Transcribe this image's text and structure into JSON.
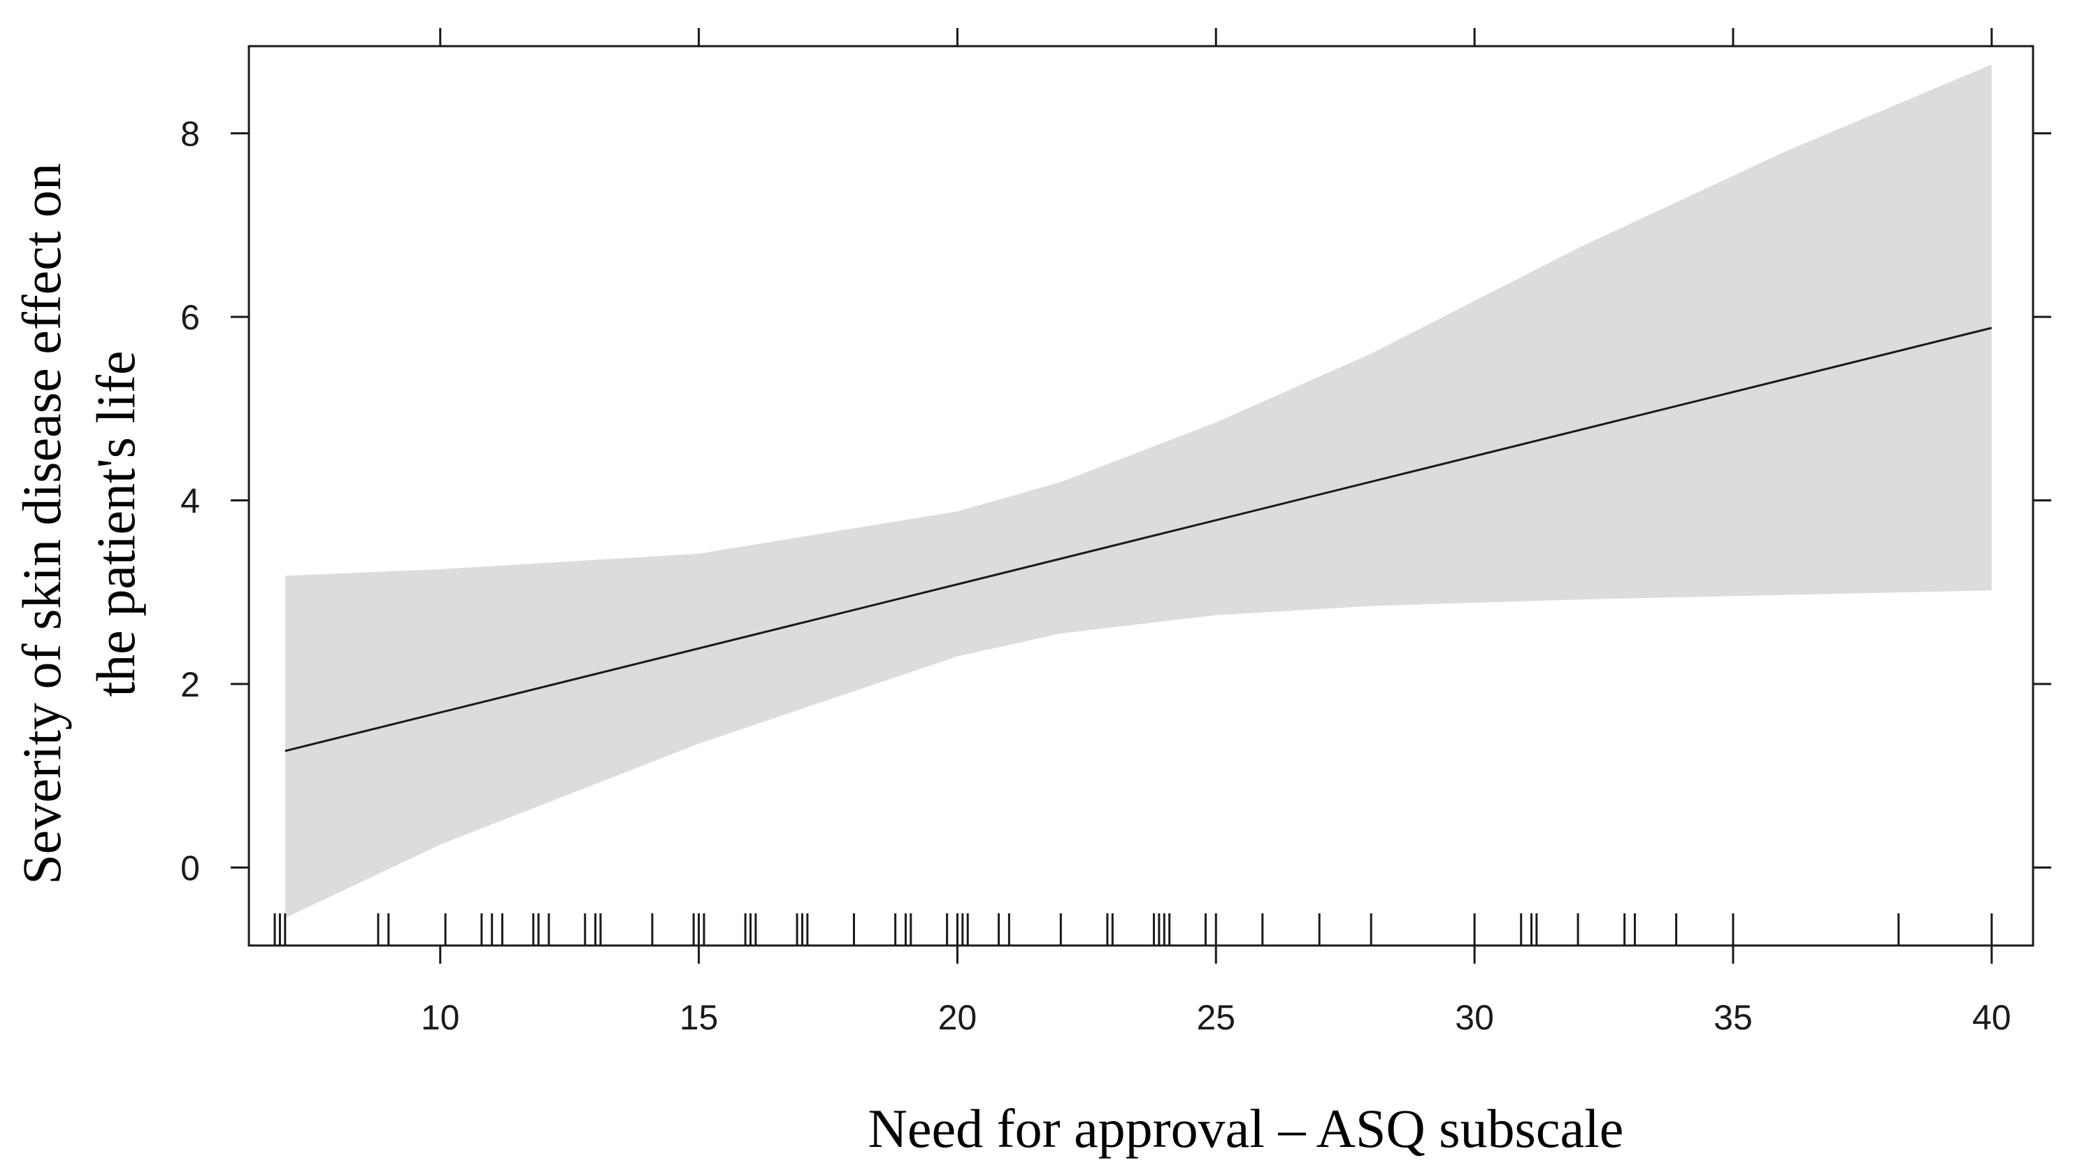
{
  "chart_data": {
    "type": "line",
    "title": "",
    "xlabel": "Need for approval – ASQ subscale",
    "ylabel_line1": "Severity of skin disease effect on",
    "ylabel_line2": "the patient's life",
    "xlim": [
      6.3,
      40.8
    ],
    "ylim": [
      -0.85,
      8.95
    ],
    "x_ticks": [
      10,
      15,
      20,
      25,
      30,
      35,
      40
    ],
    "y_ticks": [
      0,
      2,
      4,
      6,
      8
    ],
    "x_tick_labels": [
      "10",
      "15",
      "20",
      "25",
      "30",
      "35",
      "40"
    ],
    "y_tick_labels": [
      "0",
      "2",
      "4",
      "6",
      "8"
    ],
    "fit_line": {
      "x": [
        7,
        40
      ],
      "y": [
        1.27,
        5.88
      ]
    },
    "confidence_band": {
      "x": [
        7,
        10,
        15,
        20,
        22,
        25,
        28,
        32,
        36,
        40
      ],
      "upper": [
        3.18,
        3.25,
        3.42,
        3.88,
        4.2,
        4.85,
        5.6,
        6.75,
        7.8,
        8.75
      ],
      "lower": [
        -0.55,
        0.25,
        1.35,
        2.3,
        2.55,
        2.75,
        2.85,
        2.92,
        2.97,
        3.02
      ]
    },
    "rug_x": [
      6.8,
      6.9,
      7.0,
      8.8,
      9.0,
      10.1,
      10.8,
      11.0,
      11.2,
      11.8,
      11.9,
      12.1,
      12.8,
      13.0,
      13.1,
      14.1,
      14.9,
      15.0,
      15.1,
      15.9,
      16.0,
      16.1,
      16.9,
      17.0,
      17.1,
      18.0,
      18.8,
      19.0,
      19.1,
      19.8,
      20.0,
      20.1,
      20.2,
      20.8,
      21.0,
      22.0,
      22.9,
      23.0,
      23.8,
      23.9,
      24.0,
      24.1,
      24.8,
      25.0,
      25.9,
      27.0,
      28.0,
      30.0,
      30.9,
      31.1,
      31.2,
      32.0,
      32.9,
      33.1,
      33.9,
      35.0,
      38.2,
      40.0
    ],
    "colors": {
      "band": "#dcdcdc",
      "line": "#1a1a1a",
      "axis": "#1a1a1a"
    }
  }
}
